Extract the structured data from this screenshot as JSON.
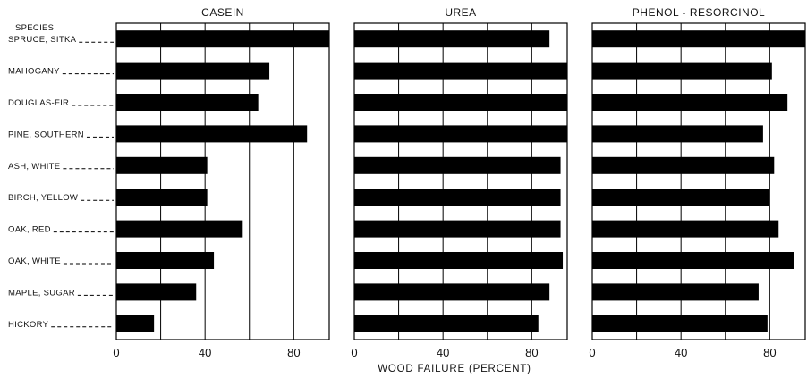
{
  "chart_data": {
    "type": "bar",
    "orientation": "horizontal",
    "species_header": "SPECIES",
    "xlabel": "WOOD FAILURE (PERCENT)",
    "xlim": [
      0,
      96
    ],
    "xticks": [
      0,
      40,
      80
    ],
    "grid": true,
    "categories": [
      "SPRUCE, SITKA",
      "MAHOGANY",
      "DOUGLAS-FIR",
      "PINE, SOUTHERN",
      "ASH, WHITE",
      "BIRCH, YELLOW",
      "OAK, RED",
      "OAK, WHITE",
      "MAPLE, SUGAR",
      "HICKORY"
    ],
    "series": [
      {
        "name": "CASEIN",
        "values": [
          97,
          69,
          64,
          86,
          41,
          41,
          57,
          44,
          36,
          17
        ]
      },
      {
        "name": "UREA",
        "values": [
          88,
          97,
          96,
          97,
          93,
          93,
          93,
          94,
          88,
          83
        ]
      },
      {
        "name": "PHENOL - RESORCINOL",
        "values": [
          100,
          81,
          88,
          77,
          82,
          80,
          84,
          91,
          75,
          79
        ]
      }
    ]
  }
}
